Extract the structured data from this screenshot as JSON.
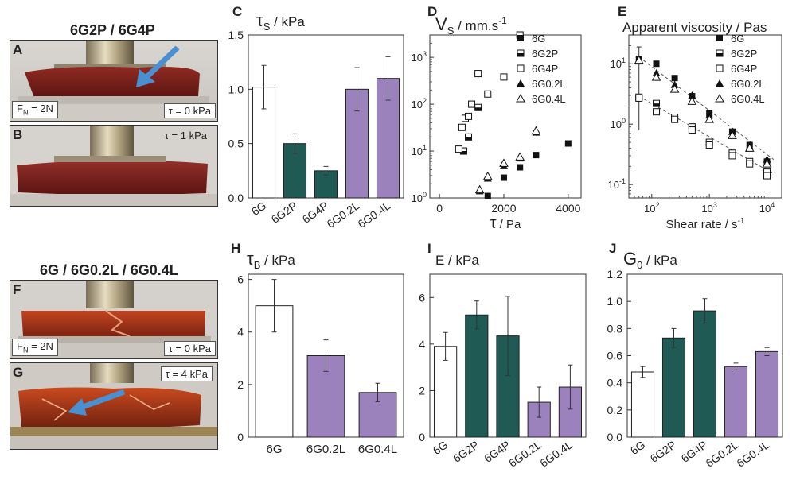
{
  "photos": {
    "group1_title": "6G2P / 6G4P",
    "group2_title": "6G / 6G0.2L / 6G0.4L",
    "A": {
      "letter": "A",
      "fn": "F",
      "fn_sub": "N",
      "fn_val": "= 2N",
      "tau": "τ = 0 kPa"
    },
    "B": {
      "letter": "B",
      "tau": "τ = 1 kPa"
    },
    "F": {
      "letter": "F",
      "fn": "F",
      "fn_sub": "N",
      "fn_val": "= 2N",
      "tau": "τ = 0 kPa"
    },
    "G": {
      "letter": "G",
      "tau": "τ = 4 kPa"
    }
  },
  "colors": {
    "white": "#ffffff",
    "teal": "#1f5a55",
    "purple": "#9b82bd",
    "grey": "#808080"
  },
  "chart_data": [
    {
      "id": "C",
      "letter": "C",
      "type": "bar",
      "title_sym": "τ",
      "title_sub": "S",
      "title_unit": " / kPa",
      "categories": [
        "6G",
        "6G2P",
        "6G4P",
        "6G0.2L",
        "6G0.4L"
      ],
      "values": [
        1.02,
        0.5,
        0.25,
        1.0,
        1.1
      ],
      "errors": [
        0.2,
        0.09,
        0.04,
        0.2,
        0.2
      ],
      "colors": [
        "white",
        "teal",
        "teal",
        "purple",
        "purple"
      ],
      "ylim": [
        0,
        1.5
      ],
      "yticks": [
        0.0,
        0.5,
        1.0,
        1.5
      ],
      "ytick_labels": [
        "0.0",
        "0.5",
        "1.0",
        "1.5"
      ]
    },
    {
      "id": "D",
      "letter": "D",
      "type": "scatter",
      "title_sym": "V",
      "title_sub": "S",
      "title_unit": " / mm.s",
      "title_sup": "-1",
      "xlabel_sym": "τ",
      "xlabel_unit": " / Pa",
      "xlim": [
        -300,
        4400
      ],
      "xticks": [
        0,
        2000,
        4000
      ],
      "xtick_labels": [
        "0",
        "2000",
        "4000"
      ],
      "ylim": [
        1,
        3000
      ],
      "yscale": "log",
      "yticks": [
        1,
        10,
        100,
        1000
      ],
      "series": [
        {
          "name": "6G",
          "marker": "filled-square",
          "points": [
            [
              1500,
              1.1
            ],
            [
              2000,
              2.7
            ],
            [
              2500,
              4.5
            ],
            [
              3000,
              8.2
            ],
            [
              4000,
              14.5
            ]
          ]
        },
        {
          "name": "6G2P",
          "marker": "half-square",
          "points": [
            [
              750,
              10
            ],
            [
              900,
              20
            ],
            [
              1200,
              85
            ],
            [
              2500,
              3000
            ]
          ]
        },
        {
          "name": "6G4P",
          "marker": "open-square",
          "points": [
            [
              600,
              11
            ],
            [
              700,
              32
            ],
            [
              800,
              50
            ],
            [
              900,
              55
            ],
            [
              1000,
              100
            ],
            [
              1200,
              450
            ],
            [
              1500,
              165
            ],
            [
              2000,
              380
            ]
          ]
        },
        {
          "name": "6G0.2L",
          "marker": "filled-triangle",
          "points": [
            [
              1250,
              1.4
            ],
            [
              1500,
              2.6
            ],
            [
              2000,
              4.8
            ],
            [
              2500,
              7.0
            ],
            [
              3000,
              25
            ]
          ]
        },
        {
          "name": "6G0.4L",
          "marker": "open-triangle",
          "points": [
            [
              1250,
              1.5
            ],
            [
              1500,
              2.9
            ],
            [
              2000,
              5.5
            ],
            [
              2500,
              7.5
            ],
            [
              3000,
              27
            ]
          ]
        }
      ]
    },
    {
      "id": "E",
      "letter": "E",
      "type": "scatter",
      "title": "Apparent viscosity / Pas",
      "xlabel": "Shear rate / s",
      "xlabel_sup": "-1",
      "xlim": [
        40,
        18000
      ],
      "xscale": "log",
      "xticks": [
        100,
        1000,
        10000
      ],
      "ylim": [
        0.06,
        30
      ],
      "yscale": "log",
      "yticks": [
        0.1,
        1,
        10
      ],
      "series": [
        {
          "name": "6G",
          "marker": "filled-square",
          "points": [
            [
              60,
              12
            ],
            [
              120,
              10
            ],
            [
              250,
              5.8
            ],
            [
              500,
              2.9
            ],
            [
              1000,
              1.5
            ],
            [
              2500,
              0.75
            ],
            [
              5000,
              0.45
            ],
            [
              10000,
              0.24
            ]
          ]
        },
        {
          "name": "6G2P",
          "marker": "half-square",
          "points": [
            [
              60,
              2.8
            ],
            [
              120,
              2.2
            ],
            [
              250,
              1.3
            ],
            [
              500,
              0.9
            ],
            [
              1000,
              0.5
            ],
            [
              2500,
              0.33
            ],
            [
              5000,
              0.24
            ],
            [
              10000,
              0.16
            ]
          ]
        },
        {
          "name": "6G4P",
          "marker": "open-square",
          "points": [
            [
              60,
              2.7
            ],
            [
              120,
              1.6
            ],
            [
              250,
              1.2
            ],
            [
              500,
              0.8
            ],
            [
              1000,
              0.45
            ],
            [
              2500,
              0.3
            ],
            [
              5000,
              0.22
            ],
            [
              10000,
              0.14
            ]
          ]
        },
        {
          "name": "6G0.2L",
          "marker": "filled-triangle",
          "points": [
            [
              60,
              11
            ],
            [
              120,
              7
            ],
            [
              250,
              4.5
            ],
            [
              500,
              3.0
            ],
            [
              1000,
              1.4
            ],
            [
              2500,
              0.75
            ],
            [
              5000,
              0.43
            ],
            [
              10000,
              0.26
            ]
          ]
        },
        {
          "name": "6G0.4L",
          "marker": "open-triangle",
          "points": [
            [
              60,
              11.5
            ],
            [
              120,
              6
            ],
            [
              250,
              3.8
            ],
            [
              500,
              2.4
            ],
            [
              1000,
              1.2
            ],
            [
              2500,
              0.65
            ],
            [
              5000,
              0.4
            ],
            [
              10000,
              0.22
            ]
          ]
        }
      ],
      "error_bar": {
        "x": 60,
        "low": 0.8,
        "high": 19
      },
      "fit_lines": [
        {
          "from": [
            60,
            13
          ],
          "to": [
            13000,
            0.26
          ]
        },
        {
          "from": [
            60,
            2.9
          ],
          "to": [
            13000,
            0.15
          ]
        }
      ]
    },
    {
      "id": "H",
      "letter": "H",
      "type": "bar",
      "title_sym": "τ",
      "title_sub": "B",
      "title_unit": " / kPa",
      "categories": [
        "6G",
        "6G0.2L",
        "6G0.4L"
      ],
      "values": [
        5.0,
        3.1,
        1.7
      ],
      "errors": [
        1.0,
        0.6,
        0.35
      ],
      "colors": [
        "white",
        "purple",
        "purple"
      ],
      "ylim": [
        0,
        6.2
      ],
      "yticks": [
        0,
        2,
        4,
        6
      ],
      "ytick_labels": [
        "0",
        "2",
        "4",
        "6"
      ]
    },
    {
      "id": "I",
      "letter": "I",
      "type": "bar",
      "title": "E / kPa",
      "categories": [
        "6G",
        "6G2P",
        "6G4P",
        "6G0.2L",
        "6G0.4L"
      ],
      "values": [
        3.9,
        5.25,
        4.35,
        1.5,
        2.15
      ],
      "errors": [
        0.6,
        0.6,
        1.7,
        0.65,
        0.95
      ],
      "colors": [
        "white",
        "teal",
        "teal",
        "purple",
        "purple"
      ],
      "ylim": [
        0,
        7
      ],
      "yticks": [
        0,
        2,
        4,
        6
      ],
      "ytick_labels": [
        "0",
        "2",
        "4",
        "6"
      ]
    },
    {
      "id": "J",
      "letter": "J",
      "type": "bar",
      "title_sym": "G",
      "title_sub": "0",
      "title_unit": " / kPa",
      "categories": [
        "6G",
        "6G2P",
        "6G4P",
        "6G0.2L",
        "6G0.4L"
      ],
      "values": [
        0.48,
        0.73,
        0.93,
        0.52,
        0.63
      ],
      "errors": [
        0.04,
        0.07,
        0.09,
        0.025,
        0.03
      ],
      "colors": [
        "white",
        "teal",
        "teal",
        "purple",
        "purple"
      ],
      "ylim": [
        0,
        1.2
      ],
      "yticks": [
        0.0,
        0.2,
        0.4,
        0.6,
        0.8,
        1.0,
        1.2
      ],
      "ytick_labels": [
        "0.0",
        "0.2",
        "0.4",
        "0.6",
        "0.8",
        "1.0",
        "1.2"
      ]
    }
  ]
}
